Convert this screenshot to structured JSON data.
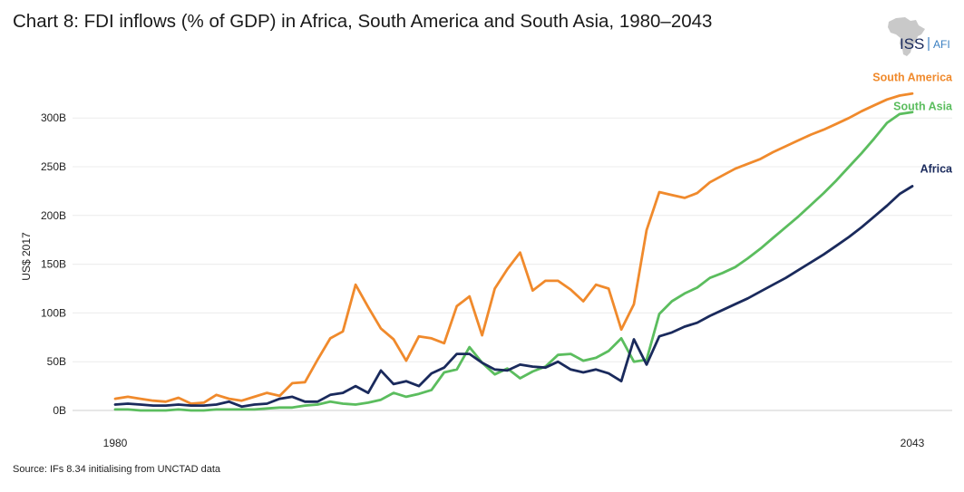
{
  "title": "Chart 8: FDI inflows (% of GDP) in Africa, South America and South Asia, 1980–2043",
  "logo": {
    "primary": "ISS",
    "secondary": "AFI",
    "icon": "africa-map-icon"
  },
  "source": "Source: IFs 8.34 initialising from UNCTAD data",
  "colors": {
    "africa": "#1a2a5c",
    "south_america": "#f08a2c",
    "south_asia": "#5bbd5e",
    "logo_text": "#1a2a5c",
    "logo_accent": "#3a7fc1"
  },
  "chart_data": {
    "type": "line",
    "title": "Chart 8: FDI inflows (% of GDP) in Africa, South America and South Asia, 1980–2043",
    "xlabel": "",
    "ylabel": "US$ 2017",
    "xlim": [
      1980,
      2043
    ],
    "ylim": [
      0,
      320
    ],
    "x_ticks": [
      "1980",
      "2043"
    ],
    "y_ticks": [
      {
        "value": 0,
        "label": "0B"
      },
      {
        "value": 50,
        "label": "50B"
      },
      {
        "value": 100,
        "label": "100B"
      },
      {
        "value": 150,
        "label": "150B"
      },
      {
        "value": 200,
        "label": "200B"
      },
      {
        "value": 250,
        "label": "250B"
      },
      {
        "value": 300,
        "label": "300B"
      }
    ],
    "grid": true,
    "x": [
      1980,
      1981,
      1982,
      1983,
      1984,
      1985,
      1986,
      1987,
      1988,
      1989,
      1990,
      1991,
      1992,
      1993,
      1994,
      1995,
      1996,
      1997,
      1998,
      1999,
      2000,
      2001,
      2002,
      2003,
      2004,
      2005,
      2006,
      2007,
      2008,
      2009,
      2010,
      2011,
      2012,
      2013,
      2014,
      2015,
      2016,
      2017,
      2018,
      2019,
      2020,
      2021,
      2022,
      2023,
      2024,
      2025,
      2026,
      2027,
      2028,
      2029,
      2030,
      2031,
      2032,
      2033,
      2034,
      2035,
      2036,
      2037,
      2038,
      2039,
      2040,
      2041,
      2042,
      2043
    ],
    "series": [
      {
        "name": "South America",
        "key": "south_america",
        "values": [
          12,
          14,
          12,
          10,
          9,
          13,
          7,
          8,
          16,
          12,
          10,
          14,
          18,
          15,
          28,
          29,
          52,
          74,
          81,
          129,
          106,
          84,
          73,
          51,
          76,
          74,
          69,
          107,
          117,
          77,
          125,
          145,
          162,
          123,
          133,
          133,
          124,
          112,
          129,
          125,
          83,
          109,
          185,
          224,
          221,
          218,
          223,
          234,
          241,
          248,
          253,
          258,
          265,
          271,
          277,
          283,
          288,
          294,
          300,
          307,
          313,
          319,
          323,
          325
        ]
      },
      {
        "name": "South Asia",
        "key": "south_asia",
        "values": [
          1,
          1,
          0,
          0,
          0,
          1,
          0,
          0,
          1,
          1,
          1,
          1,
          2,
          3,
          3,
          5,
          6,
          9,
          7,
          6,
          8,
          11,
          18,
          14,
          17,
          21,
          39,
          42,
          65,
          49,
          37,
          43,
          33,
          40,
          45,
          57,
          58,
          51,
          54,
          61,
          74,
          50,
          52,
          99,
          112,
          120,
          126,
          136,
          141,
          147,
          156,
          166,
          177,
          188,
          199,
          211,
          223,
          236,
          250,
          264,
          279,
          295,
          304,
          306
        ]
      },
      {
        "name": "Africa",
        "key": "africa",
        "values": [
          6,
          7,
          6,
          5,
          5,
          6,
          5,
          5,
          6,
          9,
          4,
          6,
          7,
          12,
          14,
          9,
          9,
          16,
          18,
          25,
          18,
          41,
          27,
          30,
          25,
          38,
          44,
          58,
          58,
          49,
          42,
          41,
          47,
          45,
          44,
          50,
          42,
          39,
          42,
          38,
          30,
          73,
          47,
          76,
          80,
          86,
          90,
          97,
          103,
          109,
          115,
          122,
          129,
          136,
          144,
          152,
          160,
          169,
          178,
          188,
          199,
          210,
          222,
          230
        ]
      }
    ]
  }
}
